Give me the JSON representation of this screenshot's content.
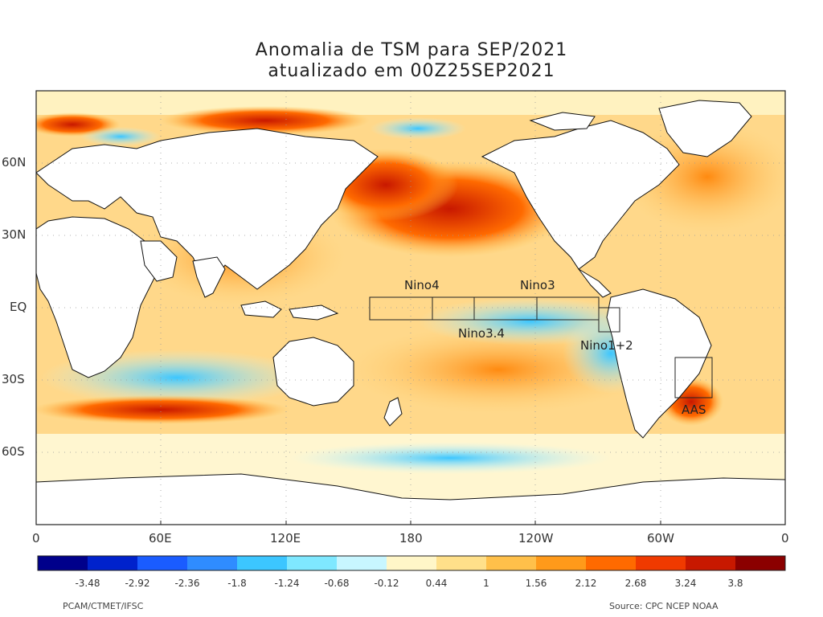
{
  "title": {
    "line1": "Anomalia de TSM para SEP/2021",
    "line2": "atualizado em 00Z25SEP2021"
  },
  "axes": {
    "y_ticks": [
      "60N",
      "30N",
      "EQ",
      "30S",
      "60S"
    ],
    "x_ticks": [
      "0",
      "60E",
      "120E",
      "180",
      "120W",
      "60W",
      "0"
    ]
  },
  "regions": [
    {
      "name": "Nino4"
    },
    {
      "name": "Nino3"
    },
    {
      "name": "Nino3.4"
    },
    {
      "name": "Nino1+2"
    },
    {
      "name": "AAS"
    }
  ],
  "colorbar": {
    "ticks": [
      "-3.48",
      "-2.92",
      "-2.36",
      "-1.8",
      "-1.24",
      "-0.68",
      "-0.12",
      "0.44",
      "1",
      "1.56",
      "2.12",
      "2.68",
      "3.24",
      "3.8"
    ],
    "colors": [
      "#00008b",
      "#0022cc",
      "#1a5cff",
      "#2f8cff",
      "#3cc6ff",
      "#7fe8ff",
      "#c8f6ff",
      "#fff6c8",
      "#ffe08a",
      "#ffc04a",
      "#ff9a1a",
      "#ff6a00",
      "#f03a00",
      "#c81800",
      "#8b0000"
    ]
  },
  "credits": {
    "left": "PCAM/CTMET/IFSC",
    "right": "Source: CPC NCEP NOAA"
  }
}
